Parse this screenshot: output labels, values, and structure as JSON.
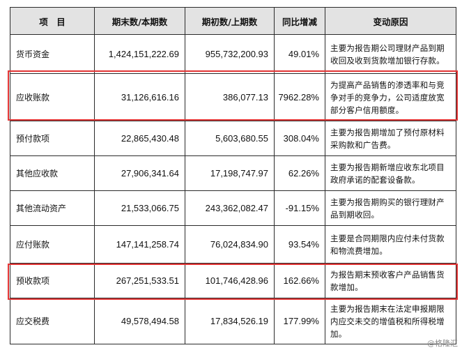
{
  "table": {
    "headers": [
      "项　目",
      "期末数/本期数",
      "期初数/上期数",
      "同比增减",
      "变动原因"
    ],
    "rows": [
      {
        "item": "货币资金",
        "end": "1,424,151,222.69",
        "begin": "955,732,200.93",
        "change": "49.01%",
        "reason": "主要为报告期公司理财产品到期收回及收到货款增加银行存款。"
      },
      {
        "item": "应收账款",
        "end": "31,126,616.16",
        "begin": "386,077.13",
        "change": "7962.28%",
        "reason": "为提高产品销售的渗透率和与竞争对手的竞争力，公司适度放宽部分客户信用额度。"
      },
      {
        "item": "预付款项",
        "end": "22,865,430.48",
        "begin": "5,603,680.55",
        "change": "308.04%",
        "reason": "主要为报告期增加了预付原材料采购款和广告费。"
      },
      {
        "item": "其他应收款",
        "end": "27,906,341.64",
        "begin": "17,198,747.97",
        "change": "62.26%",
        "reason": "主要为报告期新增应收东北项目政府承诺的配套设备款。"
      },
      {
        "item": "其他流动资产",
        "end": "21,533,066.75",
        "begin": "243,362,082.47",
        "change": "-91.15%",
        "reason": "主要为报告期购买的银行理财产品到期收回。"
      },
      {
        "item": "应付账款",
        "end": "147,141,258.74",
        "begin": "76,024,834.90",
        "change": "93.54%",
        "reason": "主要是合同期限内应付未付货款和物流费增加。"
      },
      {
        "item": "预收款项",
        "end": "267,251,533.51",
        "begin": "101,746,428.96",
        "change": "162.66%",
        "reason": "为报告期末预收客户产品销售货款增加。"
      },
      {
        "item": "应交税费",
        "end": "49,578,494.58",
        "begin": "17,834,526.19",
        "change": "177.99%",
        "reason": "主要为报告期末在法定申报期限内应交未交的增值税和所得税增加。"
      }
    ]
  },
  "highlight_color": "#e23434",
  "header_bg": "#e3e3e3",
  "watermark": "@格隆汇"
}
